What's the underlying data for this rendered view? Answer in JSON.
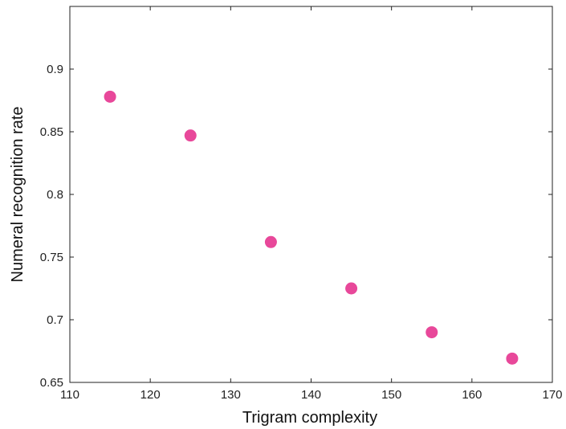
{
  "chart_data": {
    "type": "scatter",
    "title": "",
    "xlabel": "Trigram complexity",
    "ylabel": "Numeral recognition rate",
    "xlim": [
      110,
      170
    ],
    "ylim": [
      0.65,
      0.95
    ],
    "x_ticks": [
      110,
      120,
      130,
      140,
      150,
      160,
      170
    ],
    "x_tick_labels": [
      "110",
      "120",
      "130",
      "140",
      "150",
      "160",
      "170"
    ],
    "y_ticks": [
      0.65,
      0.7,
      0.75,
      0.8,
      0.85,
      0.9
    ],
    "y_tick_labels": [
      "0.65",
      "0.7",
      "0.75",
      "0.8",
      "0.85",
      "0.9"
    ],
    "grid": false,
    "legend": "none",
    "marker_color": "#e8489a",
    "points": [
      {
        "x": 115,
        "y": 0.878
      },
      {
        "x": 125,
        "y": 0.847
      },
      {
        "x": 135,
        "y": 0.762
      },
      {
        "x": 145,
        "y": 0.725
      },
      {
        "x": 155,
        "y": 0.69
      },
      {
        "x": 165,
        "y": 0.669
      }
    ]
  }
}
